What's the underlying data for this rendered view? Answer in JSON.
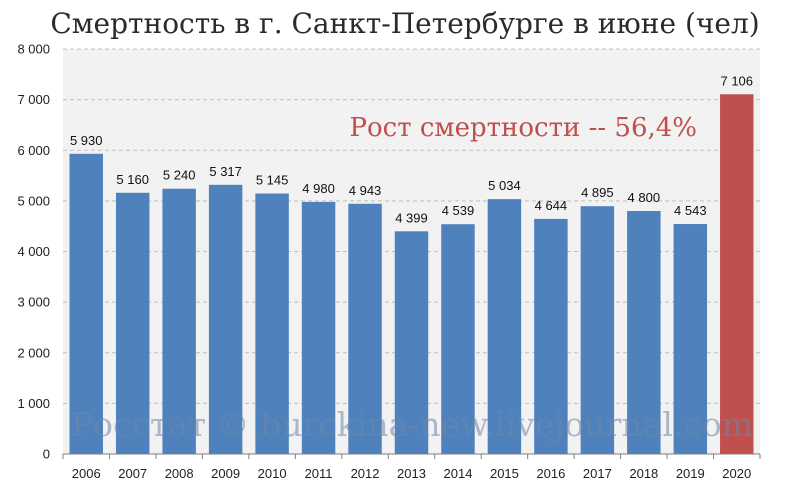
{
  "chart_data": {
    "type": "bar",
    "title": "Смертность в г. Санкт-Петербурге в июне (чел)",
    "annotation": "Рост смертности -- 56,4%",
    "watermark": "Росстат © burckina-new.livejournal.com",
    "xlabel": "",
    "ylabel": "",
    "ylim": [
      0,
      8000
    ],
    "y_ticks": [
      "0",
      "1 000",
      "2 000",
      "3 000",
      "4 000",
      "5 000",
      "6 000",
      "7 000",
      "8 000"
    ],
    "categories": [
      "2006",
      "2007",
      "2008",
      "2009",
      "2010",
      "2011",
      "2012",
      "2013",
      "2014",
      "2015",
      "2016",
      "2017",
      "2018",
      "2019",
      "2020"
    ],
    "values": [
      5930,
      5160,
      5240,
      5317,
      5145,
      4980,
      4943,
      4399,
      4539,
      5034,
      4644,
      4895,
      4800,
      4543,
      7106
    ],
    "value_labels": [
      "5 930",
      "5 160",
      "5 240",
      "5 317",
      "5 145",
      "4 980",
      "4 943",
      "4 399",
      "4 539",
      "5 034",
      "4 644",
      "4 895",
      "4 800",
      "4 543",
      "7 106"
    ],
    "grid": true,
    "legend": "none",
    "colors": {
      "bar": "#4f81bd",
      "highlight_bar": "#c0504d",
      "highlight_category": "2020",
      "annotation": "#c0504d",
      "plot_background": "#f2f2f2",
      "grid": "#bfbfbf"
    }
  }
}
